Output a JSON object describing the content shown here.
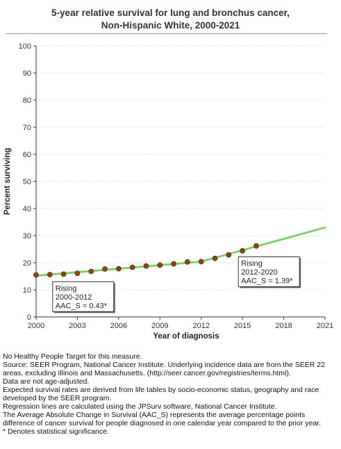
{
  "chart_data": {
    "type": "line",
    "title_lines": [
      "5-year relative survival for lung and bronchus cancer,",
      "Non-Hispanic White,  2000-2021"
    ],
    "xlabel": "Year of diagnosis",
    "ylabel": "Percent surviving",
    "xlim": [
      2000,
      2021
    ],
    "ylim": [
      0,
      100
    ],
    "x_ticks": [
      2000,
      2003,
      2006,
      2009,
      2012,
      2015,
      2018,
      2021
    ],
    "y_ticks": [
      0,
      10,
      20,
      30,
      40,
      50,
      60,
      70,
      80,
      90,
      100
    ],
    "grid": "horizontal",
    "colors": {
      "points": "#8B4513",
      "trend": "#7dcc6e",
      "grid": "#bbbbbb"
    },
    "series": [
      {
        "type": "scatter",
        "x": [
          2000,
          2001,
          2002,
          2003,
          2004,
          2005,
          2006,
          2007,
          2008,
          2009,
          2010,
          2011,
          2012,
          2013,
          2014,
          2015,
          2016
        ],
        "y": [
          15.5,
          15.6,
          15.8,
          16.1,
          16.8,
          17.7,
          17.8,
          18.3,
          18.8,
          19.1,
          19.6,
          20.3,
          20.4,
          21.6,
          22.9,
          24.4,
          26.2
        ]
      },
      {
        "type": "line",
        "x": [
          2000,
          2012,
          2021
        ],
        "y": [
          15.2,
          20.4,
          33.0
        ]
      }
    ],
    "annotations": [
      {
        "lines": [
          "Rising",
          "2000-2012",
          "AAC_S =  0.43*"
        ],
        "anchor_x": 2001.2,
        "anchor_y": 13.0
      },
      {
        "lines": [
          "Rising",
          "2012-2020",
          "AAC_S =  1.39*"
        ],
        "anchor_x": 2014.7,
        "anchor_y": 22.2
      }
    ]
  },
  "footnotes": [
    "No Healthy People Target for this measure.",
    "Source: SEER Program, National Cancer Institute. Underlying incidence data are from the SEER 22 areas, excluding Illinois and Massachusetts. (http://seer.cancer.gov/registries/terms.html).",
    "Data are not age-adjusted.",
    "Expected survival rates are derived from life tables by socio-economic status, geography and race developed by the SEER program.",
    "Regression lines are calculated using the JPSurv software, National Cancer Institute.",
    "The Average Absolute Change in Survival (AAC_S) represents the average percentage points difference of cancer survival for people diagnosed in one calendar year compared to the prior year.",
    "* Denotes statistical significance."
  ]
}
